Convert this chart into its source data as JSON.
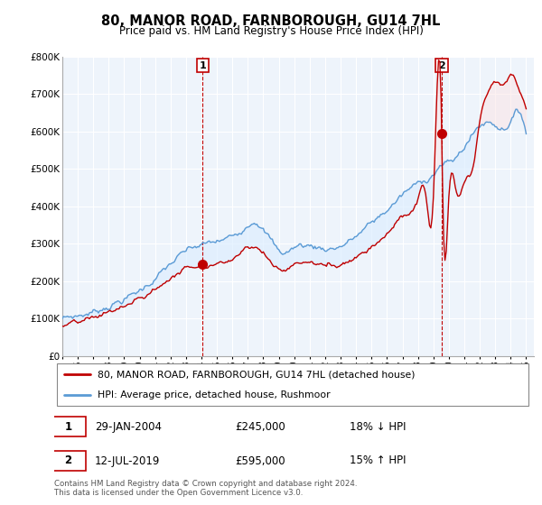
{
  "title": "80, MANOR ROAD, FARNBOROUGH, GU14 7HL",
  "subtitle": "Price paid vs. HM Land Registry's House Price Index (HPI)",
  "legend_line1": "80, MANOR ROAD, FARNBOROUGH, GU14 7HL (detached house)",
  "legend_line2": "HPI: Average price, detached house, Rushmoor",
  "annotation1_date": "29-JAN-2004",
  "annotation1_price": "£245,000",
  "annotation1_hpi": "18% ↓ HPI",
  "annotation2_date": "12-JUL-2019",
  "annotation2_price": "£595,000",
  "annotation2_hpi": "15% ↑ HPI",
  "footnote": "Contains HM Land Registry data © Crown copyright and database right 2024.\nThis data is licensed under the Open Government Licence v3.0.",
  "sale1_x": 2004.08,
  "sale1_y": 245000,
  "sale2_x": 2019.54,
  "sale2_y": 595000,
  "hpi_color": "#5b9bd5",
  "price_color": "#c00000",
  "fill_color": "#ddeeff",
  "ylim": [
    0,
    800000
  ],
  "xlim": [
    1995.0,
    2025.5
  ],
  "background_color": "#ffffff",
  "plot_background": "#eef4fb",
  "grid_color": "#ffffff"
}
